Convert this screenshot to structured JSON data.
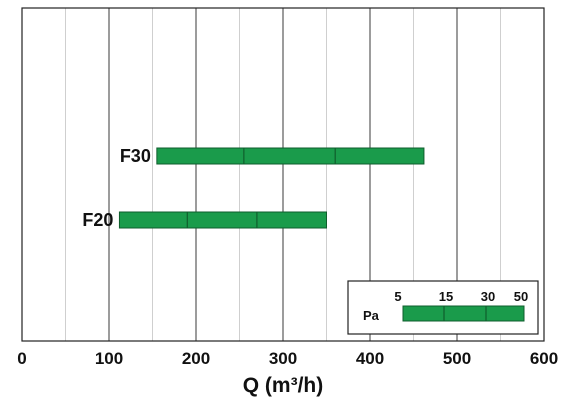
{
  "chart_data": {
    "type": "bar",
    "orientation": "horizontal-range",
    "xlabel": "Q (m³/h)",
    "xlim": [
      0,
      600
    ],
    "xticks": [
      0,
      100,
      200,
      300,
      400,
      500,
      600
    ],
    "minor_grid": [
      50,
      150,
      250,
      350,
      450,
      550
    ],
    "grid": true,
    "categories": [
      "F30",
      "F20"
    ],
    "series": [
      {
        "category": "F30",
        "start": 155,
        "end": 462,
        "dividers": [
          255,
          360
        ]
      },
      {
        "category": "F20",
        "start": 112,
        "end": 350,
        "dividers": [
          190,
          270
        ]
      }
    ],
    "bar_color": "#1a9b4b",
    "legend": {
      "position": "bottom-right",
      "unit_label": "Pa",
      "levels": [
        "5",
        "15",
        "30",
        "50"
      ]
    }
  }
}
